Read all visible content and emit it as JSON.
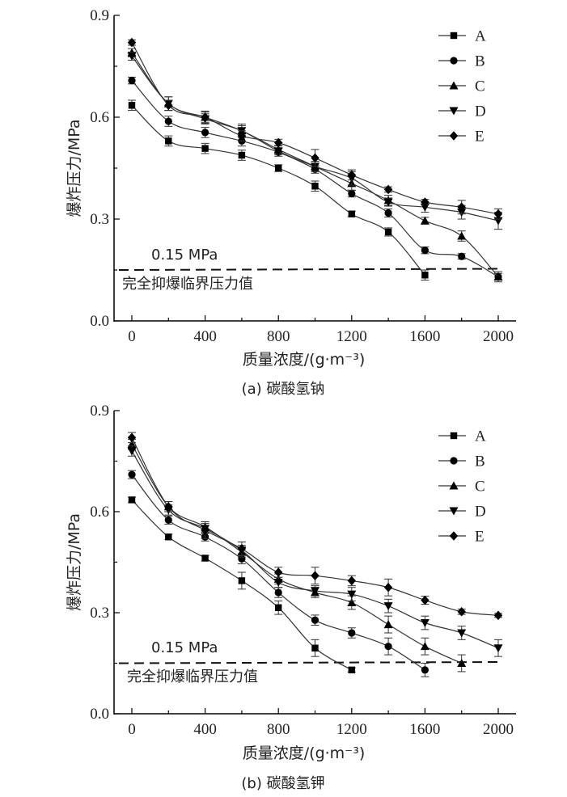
{
  "chart_data": [
    {
      "type": "line",
      "caption": "(a) 碳酸氢钠",
      "xlabel": "质量浓度/(g·m⁻³)",
      "ylabel": "爆炸压力/MPa",
      "xlim": [
        0,
        2000
      ],
      "ylim": [
        0,
        0.9
      ],
      "xticks": [
        "0",
        "400",
        "800",
        "1200",
        "1600",
        "2000"
      ],
      "yticks": [
        "0.0",
        "0.3",
        "0.6",
        "0.9"
      ],
      "legend_position": "top-right",
      "threshold": {
        "value": 0.15,
        "value_label": "0.15 MPa",
        "text": "完全抑爆临界压力值"
      },
      "series": [
        {
          "name": "A",
          "marker": "square",
          "x": [
            0,
            200,
            400,
            600,
            800,
            1000,
            1200,
            1400,
            1600
          ],
          "y": [
            0.635,
            0.53,
            0.508,
            0.488,
            0.45,
            0.397,
            0.315,
            0.262,
            0.135
          ],
          "err": [
            0.015,
            0.015,
            0.015,
            0.015,
            0.01,
            0.015,
            0.008,
            0.012,
            0.015
          ]
        },
        {
          "name": "B",
          "marker": "circle",
          "x": [
            0,
            200,
            400,
            600,
            800,
            1000,
            1200,
            1400,
            1600,
            1800,
            2000
          ],
          "y": [
            0.708,
            0.588,
            0.555,
            0.53,
            0.497,
            0.447,
            0.375,
            0.318,
            0.208,
            0.19,
            0.13
          ],
          "err": [
            0.01,
            0.015,
            0.015,
            0.015,
            0.012,
            0.012,
            0.01,
            0.012,
            0.01,
            0.008,
            0.01
          ]
        },
        {
          "name": "C",
          "marker": "triangle-up",
          "x": [
            0,
            200,
            400,
            600,
            800,
            1000,
            1200,
            1400,
            1600,
            1800,
            2000
          ],
          "y": [
            0.79,
            0.64,
            0.6,
            0.56,
            0.505,
            0.455,
            0.405,
            0.355,
            0.295,
            0.25,
            0.13
          ],
          "err": [
            0.012,
            0.02,
            0.018,
            0.015,
            0.012,
            0.015,
            0.02,
            0.015,
            0.01,
            0.015,
            0.015
          ]
        },
        {
          "name": "D",
          "marker": "triangle-down",
          "x": [
            0,
            200,
            400,
            600,
            800,
            1000,
            1200,
            1400,
            1600,
            1800,
            2000
          ],
          "y": [
            0.78,
            0.64,
            0.595,
            0.56,
            0.5,
            0.455,
            0.42,
            0.35,
            0.335,
            0.32,
            0.295
          ],
          "err": [
            0.012,
            0.02,
            0.015,
            0.02,
            0.01,
            0.015,
            0.02,
            0.012,
            0.015,
            0.02,
            0.025
          ]
        },
        {
          "name": "E",
          "marker": "diamond",
          "x": [
            0,
            200,
            400,
            600,
            800,
            1000,
            1200,
            1400,
            1600,
            1800,
            2000
          ],
          "y": [
            0.82,
            0.635,
            0.6,
            0.545,
            0.525,
            0.48,
            0.43,
            0.387,
            0.35,
            0.335,
            0.315
          ],
          "err": [
            0.008,
            0.015,
            0.015,
            0.015,
            0.01,
            0.025,
            0.015,
            0.008,
            0.008,
            0.02,
            0.015
          ]
        }
      ]
    },
    {
      "type": "line",
      "caption": "(b) 碳酸氢钾",
      "xlabel": "质量浓度/(g·m⁻³)",
      "ylabel": "爆炸压力/MPa",
      "xlim": [
        0,
        2000
      ],
      "ylim": [
        0,
        0.9
      ],
      "xticks": [
        "0",
        "400",
        "800",
        "1200",
        "1600",
        "2000"
      ],
      "yticks": [
        "0.0",
        "0.3",
        "0.6",
        "0.9"
      ],
      "legend_position": "top-right",
      "threshold": {
        "value": 0.15,
        "value_label": "0.15 MPa",
        "text": "完全抑爆临界压力值"
      },
      "series": [
        {
          "name": "A",
          "marker": "square",
          "x": [
            0,
            200,
            400,
            600,
            800,
            1000,
            1200
          ],
          "y": [
            0.635,
            0.525,
            0.462,
            0.395,
            0.315,
            0.195,
            0.13
          ],
          "err": [
            0.008,
            0.008,
            0.008,
            0.025,
            0.02,
            0.025,
            0.006
          ]
        },
        {
          "name": "B",
          "marker": "circle",
          "x": [
            0,
            200,
            400,
            600,
            800,
            1000,
            1200,
            1400,
            1600
          ],
          "y": [
            0.71,
            0.575,
            0.525,
            0.46,
            0.36,
            0.278,
            0.24,
            0.2,
            0.13
          ],
          "err": [
            0.012,
            0.012,
            0.012,
            0.015,
            0.015,
            0.015,
            0.015,
            0.025,
            0.02
          ]
        },
        {
          "name": "C",
          "marker": "triangle-up",
          "x": [
            0,
            200,
            400,
            600,
            800,
            1000,
            1200,
            1400,
            1600,
            1800
          ],
          "y": [
            0.8,
            0.615,
            0.555,
            0.48,
            0.4,
            0.36,
            0.33,
            0.265,
            0.2,
            0.15
          ],
          "err": [
            0.015,
            0.015,
            0.015,
            0.015,
            0.015,
            0.015,
            0.02,
            0.025,
            0.025,
            0.025
          ]
        },
        {
          "name": "D",
          "marker": "triangle-down",
          "x": [
            0,
            200,
            400,
            600,
            800,
            1000,
            1200,
            1400,
            1600,
            1800,
            2000
          ],
          "y": [
            0.78,
            0.605,
            0.55,
            0.485,
            0.39,
            0.365,
            0.355,
            0.32,
            0.27,
            0.24,
            0.195
          ],
          "err": [
            0.015,
            0.015,
            0.015,
            0.015,
            0.015,
            0.015,
            0.02,
            0.02,
            0.02,
            0.02,
            0.025
          ]
        },
        {
          "name": "E",
          "marker": "diamond",
          "x": [
            0,
            200,
            400,
            600,
            800,
            1000,
            1200,
            1400,
            1600,
            1800,
            2000
          ],
          "y": [
            0.82,
            0.615,
            0.545,
            0.49,
            0.42,
            0.41,
            0.395,
            0.375,
            0.337,
            0.303,
            0.292
          ],
          "err": [
            0.015,
            0.015,
            0.025,
            0.02,
            0.015,
            0.025,
            0.015,
            0.025,
            0.012,
            0.008,
            0.006
          ]
        }
      ]
    }
  ]
}
